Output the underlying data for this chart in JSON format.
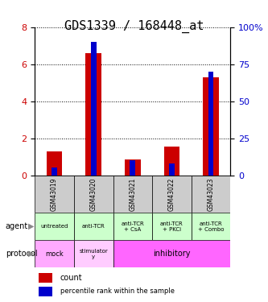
{
  "title": "GDS1339 / 168448_at",
  "samples": [
    "GSM43019",
    "GSM43020",
    "GSM43021",
    "GSM43022",
    "GSM43023"
  ],
  "count_values": [
    1.3,
    6.6,
    0.85,
    1.55,
    5.3
  ],
  "percentile_values": [
    5,
    90,
    10,
    8,
    70
  ],
  "bar_width": 0.4,
  "ylim_left": [
    0,
    8
  ],
  "ylim_right": [
    0,
    100
  ],
  "yticks_left": [
    0,
    2,
    4,
    6,
    8
  ],
  "yticks_right": [
    0,
    25,
    50,
    75,
    100
  ],
  "ytick_labels_right": [
    "0",
    "25",
    "50",
    "75",
    "100%"
  ],
  "agent_labels": [
    "untreated",
    "anti-TCR",
    "anti-TCR\n+ CsA",
    "anti-TCR\n+ PKCi",
    "anti-TCR\n+ Combo"
  ],
  "agent_bg": "#ccffcc",
  "sample_header_bg": "#cccccc",
  "count_color": "#cc0000",
  "percentile_color": "#0000cc",
  "title_fontsize": 11,
  "tick_fontsize": 8
}
